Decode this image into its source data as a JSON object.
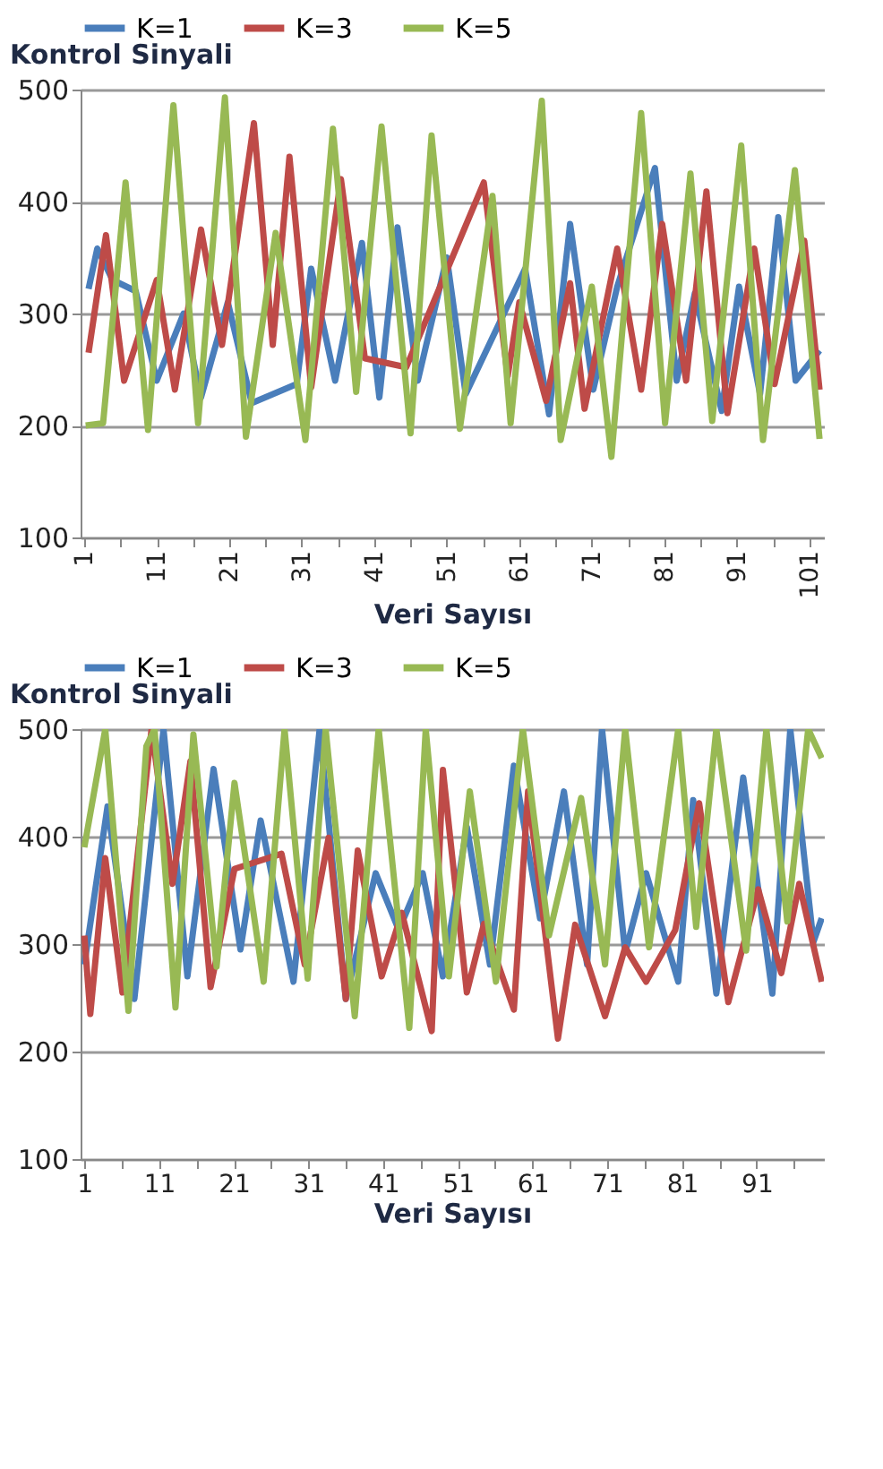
{
  "chart_data": [
    {
      "type": "line",
      "xlabel": "Veri Sayısı",
      "ylabel": "Kontrol Sinyali",
      "xlim": [
        0.5,
        103
      ],
      "ylim": [
        100,
        500
      ],
      "yticks": [
        100,
        200,
        300,
        400,
        500
      ],
      "grid": "y",
      "legend": "top",
      "marker": "none",
      "xticks": [
        1,
        {
          "value": 6,
          "label": null
        },
        11,
        {
          "value": 16,
          "label": null
        },
        21,
        {
          "value": 26,
          "label": null
        },
        31,
        {
          "value": 36,
          "label": null
        },
        41,
        {
          "value": 46,
          "label": null
        },
        51,
        {
          "value": 56,
          "label": null
        },
        61,
        {
          "value": 66,
          "label": null
        },
        71,
        {
          "value": 76,
          "label": null
        },
        81,
        {
          "value": 86,
          "label": null
        },
        91,
        {
          "value": 96,
          "label": null
        },
        101
      ],
      "series": [
        {
          "name": "K=1",
          "color": "#4a7ebb",
          "x": [
            1.6,
            2.8,
            4.9,
            8.1,
            11,
            14.7,
            17.1,
            20.8,
            24.1,
            30.3,
            32.3,
            35.6,
            39.3,
            41.7,
            44.2,
            47,
            51,
            53.6,
            61.8,
            65.1,
            68,
            71.2,
            74.5,
            79.7,
            82.7,
            85.2,
            88.9,
            91.3,
            94.2,
            96.7,
            99.1,
            102.4
          ],
          "values": [
            322,
            358,
            330,
            320,
            240,
            300,
            225,
            310,
            220,
            237,
            340,
            240,
            363,
            225,
            377,
            240,
            350,
            228,
            340,
            210,
            380,
            232,
            324,
            430,
            240,
            318,
            213,
            324,
            228,
            386,
            240,
            267
          ]
        },
        {
          "name": "K=3",
          "color": "#be4b48",
          "x": [
            1.6,
            4,
            6.5,
            11,
            13.5,
            17.1,
            20,
            24.4,
            27,
            29.3,
            32.3,
            36.4,
            39.7,
            45.4,
            56.1,
            59.4,
            61,
            64.7,
            68,
            70,
            74.5,
            77.8,
            80.7,
            84,
            86.8,
            89.7,
            93.4,
            96.2,
            100.3,
            102.4
          ],
          "values": [
            265,
            370,
            240,
            330,
            232,
            375,
            272,
            470,
            272,
            440,
            234,
            420,
            260,
            252,
            417,
            244,
            310,
            222,
            327,
            215,
            358,
            232,
            380,
            240,
            409,
            211,
            358,
            237,
            365,
            232
          ]
        },
        {
          "name": "K=5",
          "color": "#98b954",
          "x": [
            1.2,
            3.6,
            6.7,
            9.8,
            13.3,
            16.7,
            20.4,
            23.3,
            27.4,
            31.5,
            35.3,
            38.5,
            42,
            46,
            48.9,
            52.8,
            57.3,
            59.8,
            64.1,
            66.7,
            71,
            73.7,
            77.8,
            81.1,
            84.6,
            87.6,
            91.6,
            94.6,
            99,
            102.4
          ],
          "values": [
            200,
            202,
            417,
            196,
            486,
            202,
            493,
            190,
            372,
            187,
            465,
            230,
            467,
            193,
            459,
            197,
            405,
            202,
            490,
            187,
            324,
            172,
            479,
            202,
            425,
            204,
            450,
            187,
            428,
            188
          ]
        }
      ]
    },
    {
      "type": "line",
      "xlabel": "Veri Sayısı",
      "ylabel": "Kontrol Sinyali",
      "xlim": [
        0.5,
        100
      ],
      "ylim": [
        100,
        500
      ],
      "yticks": [
        100,
        200,
        300,
        400,
        500
      ],
      "grid": "y",
      "legend": "top",
      "marker": "none",
      "xticks": [
        1,
        {
          "value": 6,
          "label": null
        },
        11,
        {
          "value": 16,
          "label": null
        },
        21,
        {
          "value": 26,
          "label": null
        },
        31,
        {
          "value": 36,
          "label": null
        },
        41,
        {
          "value": 46,
          "label": null
        },
        51,
        {
          "value": 56,
          "label": null
        },
        61,
        {
          "value": 66,
          "label": null
        },
        71,
        {
          "value": 76,
          "label": null
        },
        81,
        {
          "value": 86,
          "label": null
        },
        91,
        {
          "value": 96,
          "label": null
        }
      ],
      "series": [
        {
          "name": "K=1",
          "color": "#4a7ebb",
          "x": [
            1,
            4.1,
            7.7,
            11.6,
            14.8,
            18.3,
            21.9,
            24.6,
            29,
            32.5,
            36,
            40,
            43.1,
            46.3,
            49,
            52.2,
            55.3,
            58.5,
            62,
            65.2,
            68.3,
            70.3,
            73.4,
            76.2,
            80.5,
            82.5,
            85.6,
            89.2,
            93.1,
            95.5,
            98.6,
            99.7
          ],
          "values": [
            281,
            428,
            249,
            500,
            270,
            463,
            295,
            415,
            265,
            500,
            249,
            366,
            313,
            366,
            270,
            409,
            281,
            466,
            324,
            442,
            281,
            500,
            292,
            366,
            265,
            434,
            254,
            455,
            254,
            500,
            302,
            324
          ]
        },
        {
          "name": "K=3",
          "color": "#be4b48",
          "x": [
            1,
            1.8,
            3.8,
            6.1,
            10,
            12.8,
            15.2,
            17.9,
            21.1,
            27.4,
            30.5,
            33.7,
            36,
            37.6,
            40.8,
            43.5,
            47.5,
            49,
            52.2,
            54.5,
            58.5,
            60.4,
            64.4,
            66.7,
            70.7,
            73.4,
            76.2,
            80.1,
            83.3,
            87.2,
            91.2,
            94.3,
            96.7,
            99.7
          ],
          "values": [
            308,
            235,
            380,
            255,
            500,
            356,
            470,
            260,
            370,
            384,
            281,
            399,
            249,
            387,
            270,
            329,
            219,
            462,
            255,
            319,
            239,
            442,
            212,
            318,
            233,
            297,
            265,
            313,
            431,
            246,
            351,
            273,
            356,
            265
          ]
        },
        {
          "name": "K=5",
          "color": "#98b954",
          "x": [
            1,
            3.8,
            6.9,
            9.3,
            10.4,
            13.2,
            15.6,
            18.7,
            21.1,
            25,
            27.8,
            30.9,
            33.3,
            37.2,
            40.4,
            44.5,
            46.7,
            49.8,
            52.6,
            56.1,
            59.7,
            63.2,
            67.5,
            70.7,
            73.4,
            76.6,
            80.5,
            82.9,
            85.6,
            89.6,
            92.3,
            95.1,
            97.9,
            99.7
          ],
          "values": [
            390,
            500,
            238,
            484,
            500,
            241,
            495,
            279,
            450,
            265,
            500,
            268,
            500,
            233,
            500,
            222,
            500,
            270,
            442,
            265,
            500,
            308,
            436,
            281,
            500,
            297,
            500,
            316,
            500,
            294,
            500,
            321,
            500,
            473
          ]
        }
      ]
    }
  ]
}
